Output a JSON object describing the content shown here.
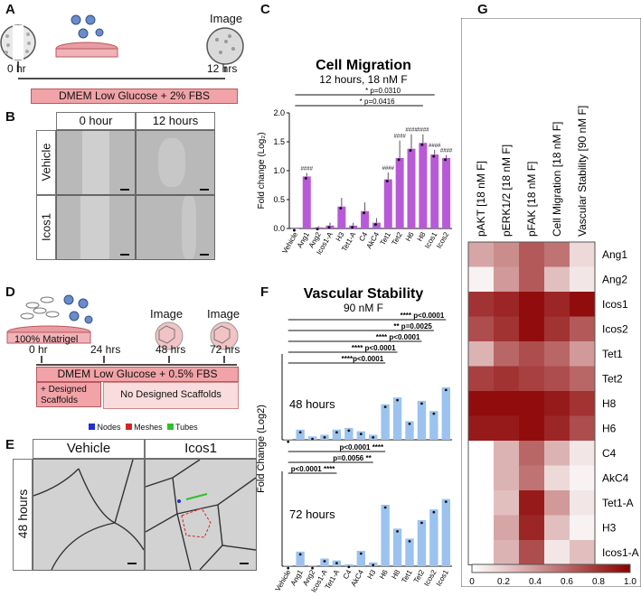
{
  "panels": {
    "A": {
      "letter": "A",
      "image": "Image",
      "t0": "0 hr",
      "t1": "12 hrs",
      "media": "DMEM Low Glucose + 2% FBS"
    },
    "B": {
      "letter": "B",
      "col0": "0 hour",
      "col1": "12 hours",
      "row0": "Vehicle",
      "row1": "Icos1"
    },
    "C": {
      "letter": "C"
    },
    "D": {
      "letter": "D",
      "matrigel": "100% Matrigel",
      "image1": "Image",
      "image2": "Image",
      "t0": "0 hr",
      "t1": "24 hrs",
      "t2": "48 hrs",
      "t3": "72 hrs",
      "media": "DMEM Low Glucose + 0.5% FBS",
      "with": "+ Designed\nScaffolds",
      "without": "No Designed Scaffolds"
    },
    "E": {
      "letter": "E",
      "legend_nodes": "Nodes",
      "legend_meshes": "Meshes",
      "legend_tubes": "Tubes",
      "col0": "Vehicle",
      "col1": "Icos1",
      "row": "48 hours"
    },
    "F": {
      "letter": "F"
    },
    "G": {
      "letter": "G"
    }
  },
  "chart_data": [
    {
      "type": "bar",
      "title": "Cell Migration",
      "subtitle": "12 hours, 18 nM F",
      "ylabel": "Fold change (Log₂)",
      "ylim": [
        0,
        2.0
      ],
      "yticks": [
        "0.0",
        "0.5",
        "1.0",
        "1.5",
        "2.0"
      ],
      "categories": [
        "Vehicle",
        "Ang1",
        "Ang2",
        "Icos1-A",
        "H3",
        "Tet1-A",
        "C4",
        "AkC4",
        "Tet1",
        "Tet2",
        "H6",
        "H8",
        "Icos1",
        "Icos2"
      ],
      "values": [
        0.0,
        0.9,
        0.02,
        0.05,
        0.38,
        0.05,
        0.3,
        0.1,
        0.85,
        1.22,
        1.38,
        1.48,
        1.28,
        1.22
      ],
      "errors": [
        0.01,
        0.06,
        0.02,
        0.05,
        0.15,
        0.05,
        0.15,
        0.08,
        0.12,
        0.3,
        0.25,
        0.15,
        0.08,
        0.05
      ],
      "sig_labels": [
        "",
        "####",
        "",
        "",
        "",
        "",
        "",
        "",
        "####",
        "####",
        "####",
        "####",
        "####",
        "####"
      ],
      "brackets": [
        {
          "label": "* p=0.0310",
          "from": "Vehicle",
          "to": "Icos1"
        },
        {
          "label": "* p=0.0416",
          "from": "Vehicle",
          "to": "H8"
        }
      ]
    },
    {
      "type": "bar",
      "title": "Vascular Stability",
      "subtitle": "90 nM F",
      "ylabel": "Fold Change (Log2)",
      "panels": [
        {
          "label": "48 hours",
          "categories": [
            "Vehicle",
            "Ang1",
            "Ang2",
            "Icos1-A",
            "Tet1-A",
            "C4",
            "AkC4",
            "H3",
            "H6",
            "H8",
            "Tet1",
            "Tet2",
            "Icos2",
            "Icos1"
          ],
          "values": [
            0.02,
            0.3,
            0.1,
            0.15,
            0.3,
            0.35,
            0.25,
            0.15,
            1.05,
            1.25,
            0.55,
            1.15,
            0.85,
            1.55
          ],
          "brackets": [
            {
              "label": "**** p<0.0001",
              "from": "Vehicle",
              "to": "Icos1"
            },
            {
              "label": "** p=0.0025",
              "from": "Vehicle",
              "to": "Icos2"
            },
            {
              "label": "**** p<0.0001",
              "from": "Vehicle",
              "to": "Tet2"
            },
            {
              "label": "**** p<0.0001",
              "from": "Vehicle",
              "to": "H8"
            },
            {
              "label": "****p<0.0001",
              "from": "Vehicle",
              "to": "H6"
            }
          ]
        },
        {
          "label": "72 hours",
          "categories": [
            "Vehicle",
            "Ang1",
            "Ang2",
            "Icos1-A",
            "Tet1-A",
            "C4",
            "AkC4",
            "H3",
            "H6",
            "H8",
            "Tet1",
            "Tet2",
            "Icos2",
            "Icos1"
          ],
          "values": [
            0.02,
            0.38,
            0.02,
            0.2,
            0.15,
            0.05,
            0.4,
            0.1,
            1.6,
            0.98,
            0.72,
            1.2,
            1.48,
            1.75
          ],
          "brackets": [
            {
              "label": "p<0.0001 ****",
              "from": "Vehicle",
              "to": "H6"
            },
            {
              "label": "p=0.0056 **",
              "from": "Vehicle",
              "to": "H3"
            },
            {
              "label": "p<0.0001 ****",
              "from": "Vehicle",
              "to": "Tet1-A"
            }
          ]
        }
      ]
    },
    {
      "type": "heatmap",
      "columns": [
        "pAKT [18 nM F]",
        "pERK1/2 [18 nM F]",
        "pFAK [18 nM F]",
        "Cell Migration [18 nM F]",
        "Vascular Stability [90 nM F]"
      ],
      "rows": [
        "Ang1",
        "Ang2",
        "Icos1",
        "Icos2",
        "Tet1",
        "Tet2",
        "H8",
        "H6",
        "C4",
        "AkC4",
        "Tet1-A",
        "H3",
        "Icos1-A"
      ],
      "values": [
        [
          0.35,
          0.45,
          0.65,
          0.55,
          0.15
        ],
        [
          0.05,
          0.4,
          0.65,
          0.25,
          0.1
        ],
        [
          0.8,
          0.85,
          0.95,
          0.85,
          0.95
        ],
        [
          0.7,
          0.8,
          0.95,
          0.8,
          0.65
        ],
        [
          0.3,
          0.6,
          0.7,
          0.6,
          0.4
        ],
        [
          0.75,
          0.8,
          0.75,
          0.7,
          0.6
        ],
        [
          0.95,
          0.95,
          0.95,
          0.9,
          0.8
        ],
        [
          0.9,
          0.9,
          0.95,
          0.85,
          0.7
        ],
        [
          0.0,
          0.3,
          0.6,
          0.3,
          0.1
        ],
        [
          0.0,
          0.3,
          0.55,
          0.15,
          0.05
        ],
        [
          0.0,
          0.25,
          0.9,
          0.4,
          0.1
        ],
        [
          0.0,
          0.35,
          0.85,
          0.25,
          0.05
        ],
        [
          0.0,
          0.3,
          0.7,
          0.1,
          0.25
        ]
      ],
      "colorbar_ticks": [
        "0",
        "0.2",
        "0.4",
        "0.6",
        "0.8",
        "1.0"
      ],
      "colormap": [
        "#ffffff",
        "#8b0000"
      ]
    }
  ]
}
